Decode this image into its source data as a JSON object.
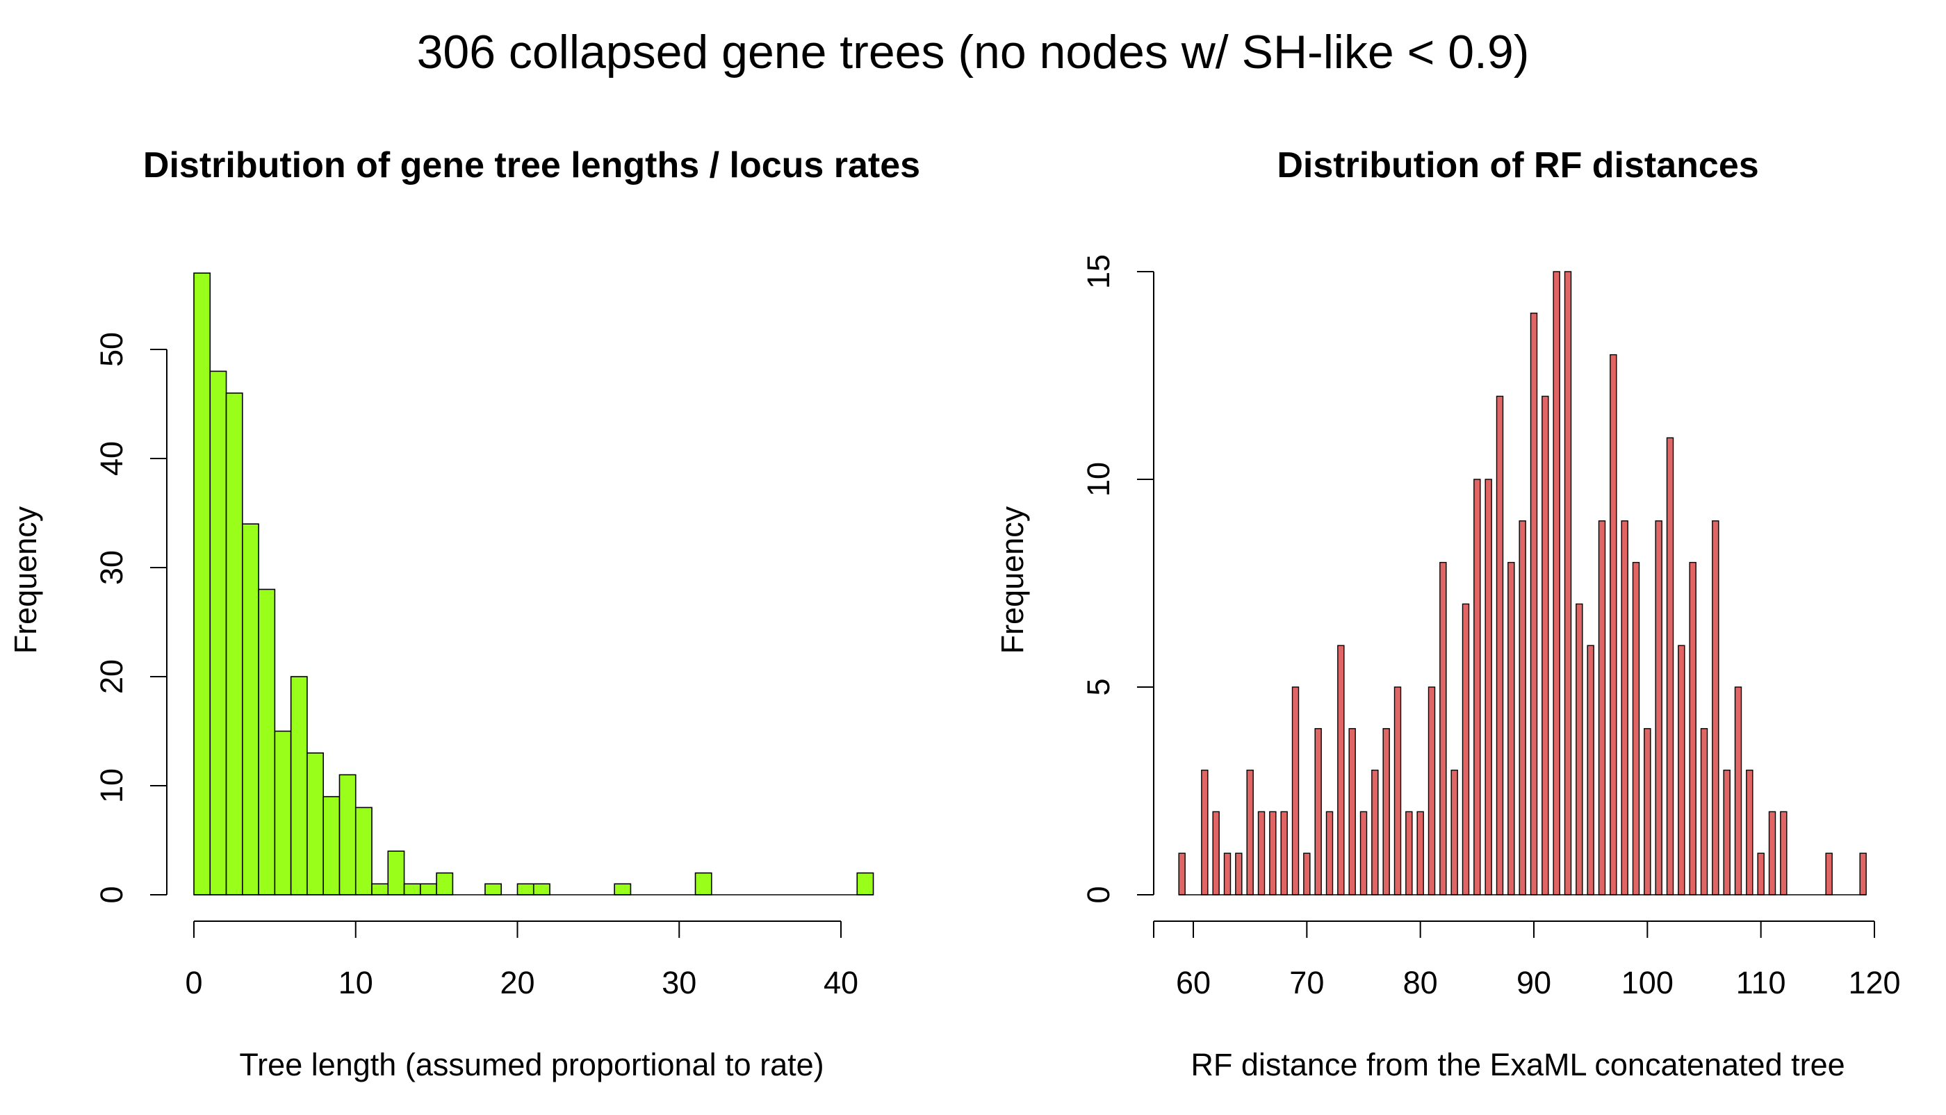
{
  "figure_title": "306 collapsed gene trees (no nodes w/ SH-like < 0.9)",
  "colors": {
    "left_fill": "#99ff1a",
    "right_fill": "#e06666",
    "stroke": "#000000"
  },
  "chart_data": [
    {
      "type": "bar",
      "subtype": "histogram",
      "title": "Distribution of gene tree lengths / locus rates",
      "xlabel": "Tree length (assumed proportional to rate)",
      "ylabel": "Frequency",
      "xlim": [
        0,
        42
      ],
      "ylim": [
        0,
        57
      ],
      "bin_width": 1,
      "bin_start": 0,
      "x_ticks": [
        0,
        10,
        20,
        30,
        40
      ],
      "y_ticks": [
        0,
        10,
        20,
        30,
        40,
        50
      ],
      "values": [
        57,
        48,
        46,
        34,
        28,
        15,
        20,
        13,
        9,
        11,
        8,
        1,
        4,
        1,
        1,
        2,
        0,
        0,
        1,
        0,
        1,
        1,
        0,
        0,
        0,
        0,
        1,
        0,
        0,
        0,
        0,
        2,
        0,
        0,
        0,
        0,
        0,
        0,
        0,
        0,
        0,
        2
      ],
      "grid": false,
      "legend": "none"
    },
    {
      "type": "bar",
      "title": "Distribution of RF distances",
      "xlabel": "RF distance from the ExaML concatenated tree",
      "ylabel": "Frequency",
      "xlim": [
        60,
        120
      ],
      "ylim": [
        0,
        15
      ],
      "x_ticks": [
        60,
        70,
        80,
        90,
        100,
        110,
        120
      ],
      "y_ticks": [
        0,
        5,
        10,
        15
      ],
      "x": [
        59,
        61,
        62,
        63,
        64,
        65,
        66,
        67,
        68,
        69,
        70,
        71,
        72,
        73,
        74,
        75,
        76,
        77,
        78,
        79,
        80,
        81,
        82,
        83,
        84,
        85,
        86,
        87,
        88,
        89,
        90,
        91,
        92,
        93,
        94,
        95,
        96,
        97,
        98,
        99,
        100,
        101,
        102,
        103,
        104,
        105,
        106,
        107,
        108,
        109,
        110,
        111,
        112,
        116,
        119
      ],
      "values": [
        1,
        3,
        2,
        1,
        1,
        3,
        2,
        2,
        2,
        5,
        1,
        4,
        2,
        6,
        4,
        2,
        3,
        4,
        5,
        2,
        2,
        5,
        8,
        3,
        7,
        10,
        10,
        12,
        8,
        9,
        14,
        12,
        15,
        15,
        7,
        6,
        9,
        13,
        9,
        8,
        4,
        9,
        11,
        6,
        8,
        4,
        9,
        3,
        5,
        3,
        1,
        2,
        2,
        1,
        1
      ],
      "grid": false,
      "legend": "none"
    }
  ]
}
